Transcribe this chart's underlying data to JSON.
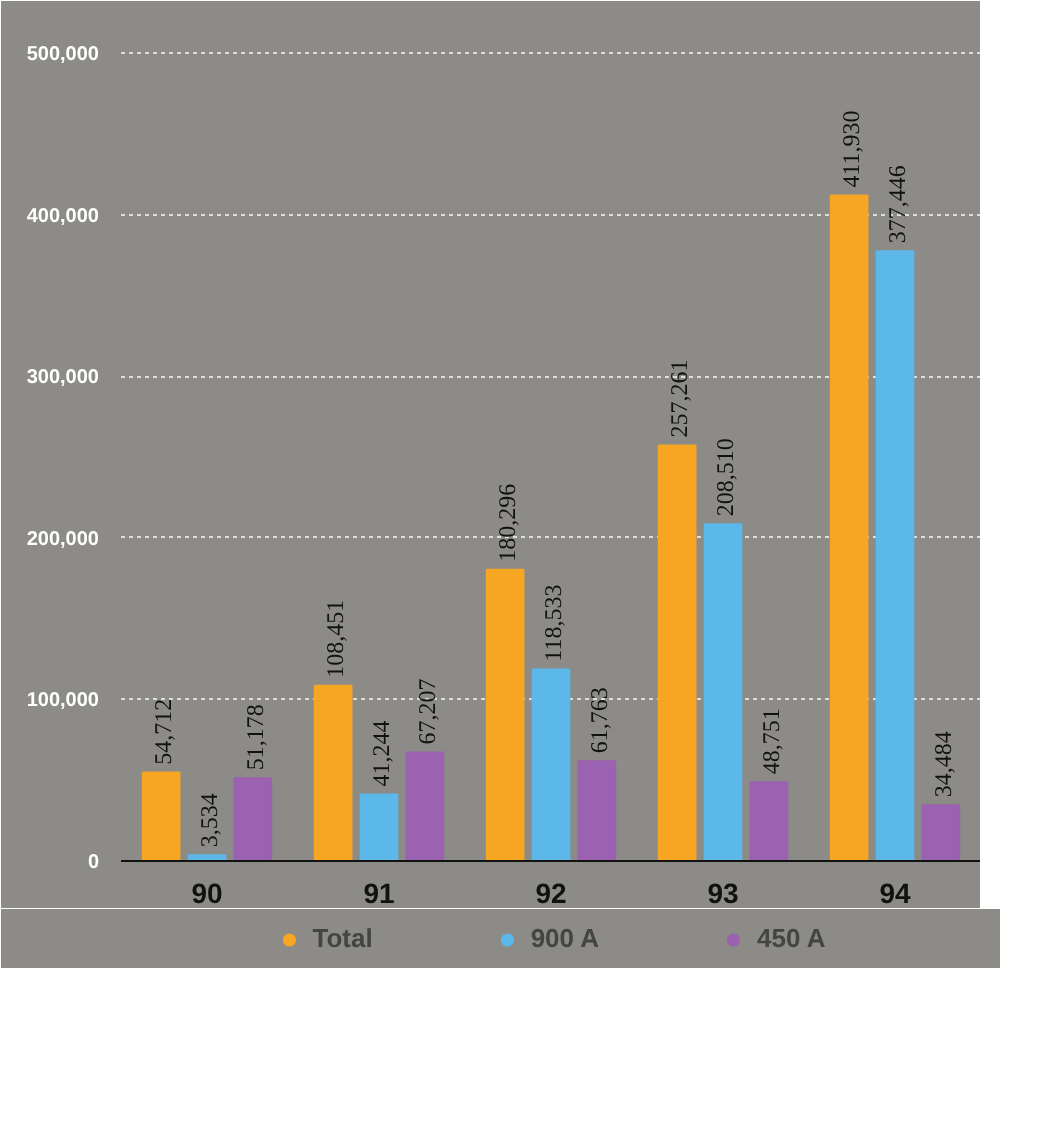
{
  "chart_data": {
    "type": "bar",
    "categories": [
      "90",
      "91",
      "92",
      "93",
      "94"
    ],
    "series": [
      {
        "name": "Total",
        "color": "#f6a623",
        "values": [
          54712,
          108451,
          180296,
          257261,
          411930
        ],
        "value_labels": [
          "54,712",
          "108,451",
          "180,296",
          "257,261",
          "411,930"
        ]
      },
      {
        "name": "900 A",
        "color": "#5bb8e8",
        "values": [
          3534,
          41244,
          118533,
          208510,
          377446
        ],
        "value_labels": [
          "3,534",
          "41,244",
          "118,533",
          "208,510",
          "377,446"
        ]
      },
      {
        "name": "450 A",
        "color": "#9a62b0",
        "values": [
          51178,
          67207,
          61763,
          48751,
          34484
        ],
        "value_labels": [
          "51,178",
          "67,207",
          "61,763",
          "48,751",
          "34,484"
        ]
      }
    ],
    "ylim": [
      0,
      520000
    ],
    "yticks": [
      {
        "value": 0,
        "label": "0"
      },
      {
        "value": 100000,
        "label": "100,000"
      },
      {
        "value": 200000,
        "label": "200,000"
      },
      {
        "value": 300000,
        "label": "300,000"
      },
      {
        "value": 400000,
        "label": "400,000"
      },
      {
        "value": 500000,
        "label": "500,000"
      }
    ],
    "grid": "y",
    "legend": "bottom"
  }
}
